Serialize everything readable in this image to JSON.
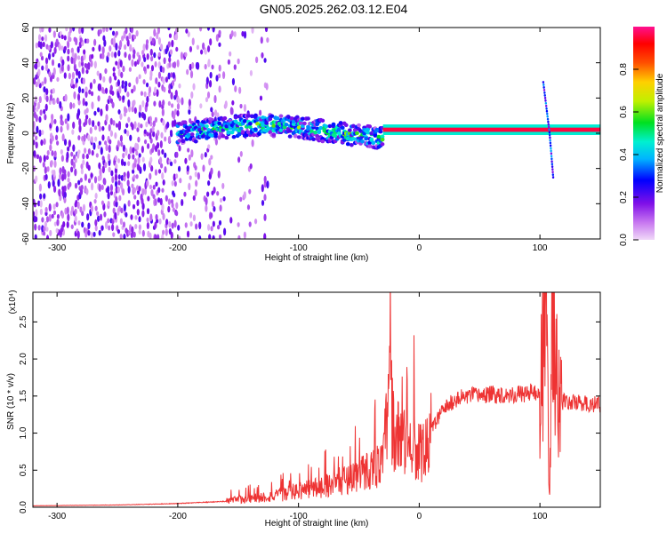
{
  "title": "GN05.2025.262.03.12.E04",
  "chart_data": [
    {
      "type": "heatmap",
      "title": "GN05.2025.262.03.12.E04",
      "xlabel": "Height of straight line (km)",
      "ylabel": "Frequency (Hz)",
      "xlim": [
        -320,
        150
      ],
      "ylim": [
        -60,
        60
      ],
      "xticks": [
        -300,
        -200,
        -100,
        0,
        100
      ],
      "yticks": [
        -60,
        -40,
        -20,
        0,
        20,
        40,
        60
      ],
      "colorbar": {
        "label": "Normalized spectral amplitude",
        "range": [
          0.0,
          1.0
        ],
        "ticks": [
          "0.0",
          "0.2",
          "0.4",
          "0.6",
          "0.8"
        ],
        "colors": [
          "#f0d8f8",
          "#c878f0",
          "#8010e8",
          "#0000ff",
          "#00b4ff",
          "#00f0d0",
          "#00e020",
          "#c0f000",
          "#ffd000",
          "#ff5000",
          "#ff0000",
          "#ff1090"
        ]
      },
      "features": [
        {
          "name": "scattered-noise",
          "x_range": [
            -320,
            -125
          ],
          "freq_range": [
            -60,
            60
          ],
          "amplitude": 0.15
        },
        {
          "name": "turbulent-band",
          "x_range": [
            -200,
            -30
          ],
          "center_hz": [
            0,
            3,
            5,
            3,
            0,
            -3
          ],
          "amplitude": 0.5
        },
        {
          "name": "steady-line",
          "x_range": [
            -30,
            150
          ],
          "center_hz": 2,
          "amplitude": 0.95
        },
        {
          "name": "vertical-streak",
          "x": 108,
          "freq_range": [
            -25,
            30
          ],
          "amplitude": 0.3
        }
      ]
    },
    {
      "type": "line",
      "xlabel": "Height of straight line (km)",
      "ylabel": "SNR (10 * v/v)",
      "ymultiplier": "(x10⁴)",
      "xlim": [
        -320,
        150
      ],
      "ylim": [
        0,
        2.9
      ],
      "xticks": [
        -300,
        -200,
        -100,
        0,
        100
      ],
      "yticks": [
        "0.0",
        "0.5",
        "1.0",
        "1.5",
        "2.0",
        "2.5"
      ],
      "color": "#ee3333",
      "x": [
        -320,
        -250,
        -200,
        -160,
        -140,
        -120,
        -100,
        -80,
        -60,
        -50,
        -40,
        -30,
        -25,
        -20,
        -15,
        -10,
        -5,
        0,
        5,
        10,
        20,
        30,
        40,
        60,
        80,
        95,
        100,
        105,
        108,
        110,
        112,
        115,
        120,
        130,
        150
      ],
      "values": [
        0.02,
        0.03,
        0.05,
        0.08,
        0.12,
        0.15,
        0.22,
        0.28,
        0.38,
        0.45,
        0.52,
        0.58,
        1.55,
        0.95,
        0.92,
        0.82,
        0.88,
        0.72,
        0.75,
        1.05,
        1.32,
        1.45,
        1.5,
        1.52,
        1.52,
        1.55,
        1.52,
        2.7,
        0.15,
        2.75,
        2.35,
        1.45,
        1.42,
        1.41,
        1.38
      ]
    }
  ]
}
